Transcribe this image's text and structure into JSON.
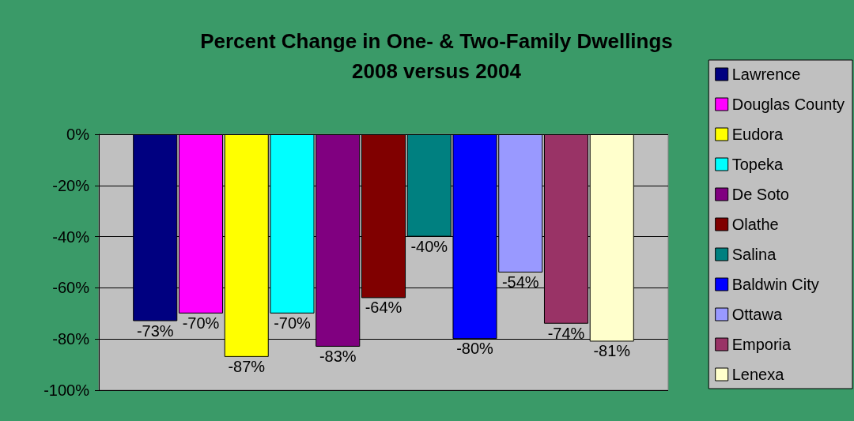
{
  "chart_data": {
    "type": "bar",
    "title": "Percent Change in One- & Two-Family Dwellings\n2008 versus 2004",
    "categories": [
      null
    ],
    "series": [
      {
        "name": "Lawrence",
        "color": "#000080",
        "values": [
          -73
        ],
        "value_labels": [
          "-73%"
        ]
      },
      {
        "name": "Douglas County",
        "color": "#ff00ff",
        "values": [
          -70
        ],
        "value_labels": [
          "-70%"
        ]
      },
      {
        "name": "Eudora",
        "color": "#ffff00",
        "values": [
          -87
        ],
        "value_labels": [
          "-87%"
        ]
      },
      {
        "name": "Topeka",
        "color": "#00ffff",
        "values": [
          -70
        ],
        "value_labels": [
          "-70%"
        ]
      },
      {
        "name": "De Soto",
        "color": "#800080",
        "values": [
          -83
        ],
        "value_labels": [
          "-83%"
        ]
      },
      {
        "name": "Olathe",
        "color": "#800000",
        "values": [
          -64
        ],
        "value_labels": [
          "-64%"
        ]
      },
      {
        "name": "Salina",
        "color": "#008080",
        "values": [
          -40
        ],
        "value_labels": [
          "-40%"
        ]
      },
      {
        "name": "Baldwin City",
        "color": "#0000ff",
        "values": [
          -80
        ],
        "value_labels": [
          "-80%"
        ]
      },
      {
        "name": "Ottawa",
        "color": "#9999ff",
        "values": [
          -54
        ],
        "value_labels": [
          "-54%"
        ]
      },
      {
        "name": "Emporia",
        "color": "#993366",
        "values": [
          -74
        ],
        "value_labels": [
          "-74%"
        ]
      },
      {
        "name": "Lenexa",
        "color": "#ffffcc",
        "values": [
          -81
        ],
        "value_labels": [
          "-81%"
        ]
      }
    ],
    "ylim": [
      -100,
      0
    ],
    "yticks": [
      {
        "value": -100,
        "label": "-100%"
      },
      {
        "value": -80,
        "label": "-80%"
      },
      {
        "value": -60,
        "label": "-60%"
      },
      {
        "value": -40,
        "label": "-40%"
      },
      {
        "value": -20,
        "label": "-20%"
      },
      {
        "value": 0,
        "label": "0%"
      }
    ],
    "grid": "y",
    "legend": "right"
  }
}
